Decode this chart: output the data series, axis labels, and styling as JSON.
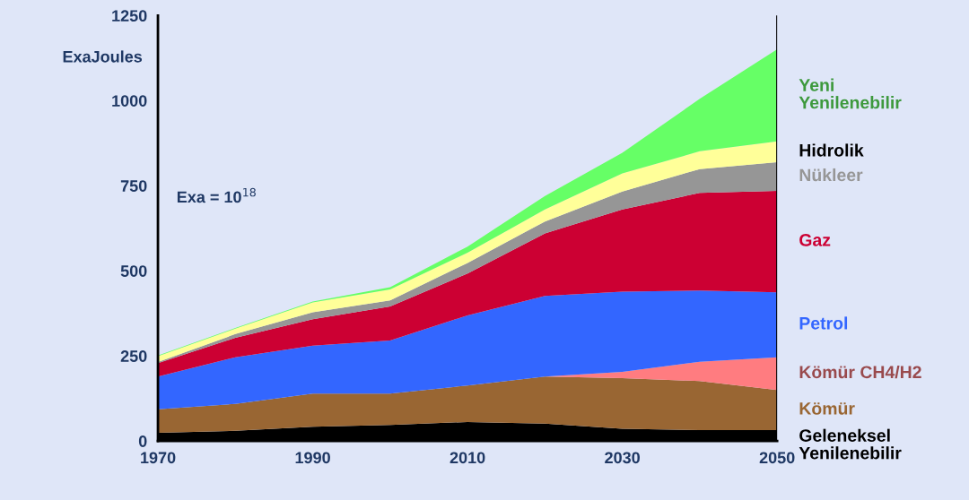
{
  "chart_data": {
    "type": "area",
    "stacked": true,
    "ylabel": "ExaJoules",
    "annotations": [
      "Exa = 10$^{18}$"
    ],
    "x": [
      1970,
      1980,
      1990,
      2000,
      2010,
      2020,
      2030,
      2040,
      2050
    ],
    "xlim": [
      1970,
      2050
    ],
    "xticks": [
      1970,
      1990,
      2010,
      2030,
      2050
    ],
    "ylim": [
      0,
      1250
    ],
    "yticks": [
      0,
      250,
      500,
      750,
      1000,
      1250
    ],
    "grid": false,
    "legend": false,
    "series": [
      {
        "name": "Geleneksel\nYenilenebilir",
        "color": "#000000",
        "values": [
          24,
          30,
          42,
          47,
          56,
          51,
          36,
          32,
          32
        ]
      },
      {
        "name": "Kömür",
        "color": "#996633",
        "values": [
          69,
          79,
          97,
          92,
          107,
          138,
          149,
          144,
          118
        ]
      },
      {
        "name": "Kömür CH4/H2",
        "color": "#ff7c80",
        "values": [
          0,
          0,
          0,
          0,
          0,
          0,
          18,
          57,
          96
        ]
      },
      {
        "name": "Petrol",
        "color": "#3366ff",
        "values": [
          96,
          137,
          141,
          156,
          206,
          237,
          236,
          209,
          191
        ]
      },
      {
        "name": "Gaz",
        "color": "#cc0033",
        "values": [
          40,
          57,
          78,
          100,
          123,
          184,
          241,
          287,
          298
        ]
      },
      {
        "name": "Nükleer",
        "color": "#969696",
        "values": [
          3,
          11,
          20,
          18,
          31,
          35,
          53,
          70,
          84
        ]
      },
      {
        "name": "Hidrolik",
        "color": "#ffff99",
        "values": [
          17,
          16,
          29,
          32,
          30,
          35,
          53,
          52,
          61
        ]
      },
      {
        "name": "Yeni\nYenilenebilir",
        "color": "#66ff66",
        "values": [
          2,
          2,
          3,
          7,
          18,
          40,
          61,
          154,
          271
        ]
      }
    ]
  }
}
